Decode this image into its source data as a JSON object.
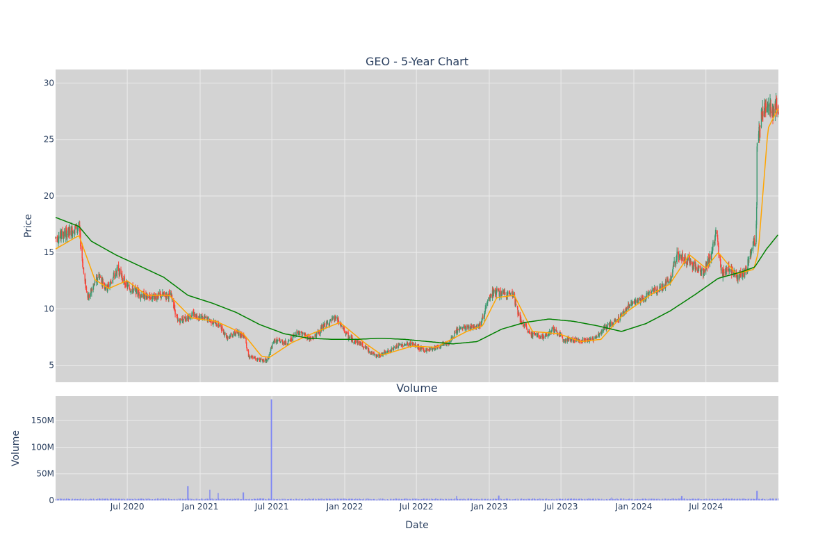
{
  "chart_data": [
    {
      "type": "candlestick",
      "title": "GEO - 5-Year Chart",
      "ylabel": "Price",
      "xlabel": "",
      "ylim": [
        3.5,
        31.2
      ],
      "yticks": [
        5,
        10,
        15,
        20,
        25,
        30
      ],
      "xticks": [
        "Jul 2020",
        "Jan 2021",
        "Jul 2021",
        "Jan 2022",
        "Jul 2022",
        "Jan 2023",
        "Jul 2023",
        "Jan 2024",
        "Jul 2024"
      ],
      "colors": {
        "up": "#3d9970",
        "down": "#ff4136",
        "ma_short": "#ffa500",
        "ma_long": "#008000",
        "plot_bg": "#d3d3d3",
        "grid": "#ebebeb"
      },
      "price_anchors": [
        [
          "2020-01-02",
          16.3
        ],
        [
          "2020-02-05",
          16.8
        ],
        [
          "2020-03-01",
          17.3
        ],
        [
          "2020-03-15",
          12.5
        ],
        [
          "2020-03-25",
          11.0
        ],
        [
          "2020-04-20",
          13.0
        ],
        [
          "2020-05-10",
          11.8
        ],
        [
          "2020-06-08",
          13.5
        ],
        [
          "2020-06-30",
          12.0
        ],
        [
          "2020-08-20",
          11.0
        ],
        [
          "2020-09-30",
          11.2
        ],
        [
          "2020-10-20",
          11.2
        ],
        [
          "2020-11-05",
          8.9
        ],
        [
          "2020-12-15",
          9.5
        ],
        [
          "2021-01-25",
          9.0
        ],
        [
          "2021-02-20",
          8.5
        ],
        [
          "2021-03-10",
          7.5
        ],
        [
          "2021-04-05",
          7.9
        ],
        [
          "2021-04-25",
          7.6
        ],
        [
          "2021-05-02",
          5.8
        ],
        [
          "2021-06-01",
          5.5
        ],
        [
          "2021-06-20",
          5.4
        ],
        [
          "2021-06-29",
          6.5
        ],
        [
          "2021-07-08",
          7.2
        ],
        [
          "2021-08-10",
          7.0
        ],
        [
          "2021-09-05",
          8.0
        ],
        [
          "2021-10-10",
          7.3
        ],
        [
          "2021-11-10",
          8.5
        ],
        [
          "2021-12-10",
          9.2
        ],
        [
          "2022-01-10",
          7.5
        ],
        [
          "2022-02-15",
          6.8
        ],
        [
          "2022-03-20",
          5.8
        ],
        [
          "2022-04-20",
          6.2
        ],
        [
          "2022-05-20",
          6.8
        ],
        [
          "2022-06-20",
          6.9
        ],
        [
          "2022-07-20",
          6.3
        ],
        [
          "2022-08-20",
          6.6
        ],
        [
          "2022-09-20",
          7.0
        ],
        [
          "2022-10-15",
          8.2
        ],
        [
          "2022-11-15",
          8.4
        ],
        [
          "2022-12-10",
          8.6
        ],
        [
          "2022-12-25",
          10.3
        ],
        [
          "2023-01-10",
          11.5
        ],
        [
          "2023-02-10",
          11.3
        ],
        [
          "2023-03-01",
          11.4
        ],
        [
          "2023-03-20",
          9.0
        ],
        [
          "2023-04-15",
          7.8
        ],
        [
          "2023-05-20",
          7.5
        ],
        [
          "2023-06-10",
          8.2
        ],
        [
          "2023-07-10",
          7.3
        ],
        [
          "2023-08-20",
          7.2
        ],
        [
          "2023-09-20",
          7.3
        ],
        [
          "2023-10-20",
          8.3
        ],
        [
          "2023-11-20",
          9.0
        ],
        [
          "2023-12-20",
          10.3
        ],
        [
          "2024-01-20",
          10.8
        ],
        [
          "2024-02-20",
          11.6
        ],
        [
          "2024-03-15",
          12.0
        ],
        [
          "2024-04-01",
          12.6
        ],
        [
          "2024-04-20",
          14.8
        ],
        [
          "2024-05-20",
          14.2
        ],
        [
          "2024-06-10",
          13.6
        ],
        [
          "2024-06-25",
          13.2
        ],
        [
          "2024-07-10",
          14.5
        ],
        [
          "2024-07-28",
          16.6
        ],
        [
          "2024-08-10",
          13.0
        ],
        [
          "2024-08-25",
          13.7
        ],
        [
          "2024-09-20",
          12.8
        ],
        [
          "2024-10-10",
          13.3
        ],
        [
          "2024-10-25",
          15.5
        ],
        [
          "2024-11-04",
          16.0
        ],
        [
          "2024-11-06",
          19.5
        ],
        [
          "2024-11-07",
          24.5
        ],
        [
          "2024-11-20",
          27.5
        ],
        [
          "2024-12-05",
          28.0
        ],
        [
          "2024-12-20",
          27.5
        ],
        [
          "2024-12-31",
          28.0
        ]
      ],
      "ma_short_anchors": [
        [
          "2020-01-02",
          15.3
        ],
        [
          "2020-03-01",
          16.5
        ],
        [
          "2020-04-10",
          12.6
        ],
        [
          "2020-05-15",
          11.8
        ],
        [
          "2020-06-30",
          12.5
        ],
        [
          "2020-08-20",
          11.2
        ],
        [
          "2020-10-15",
          11.2
        ],
        [
          "2020-12-10",
          9.2
        ],
        [
          "2021-02-10",
          8.9
        ],
        [
          "2021-04-20",
          7.8
        ],
        [
          "2021-06-05",
          5.8
        ],
        [
          "2021-06-25",
          5.7
        ],
        [
          "2021-08-20",
          7.0
        ],
        [
          "2021-10-10",
          7.8
        ],
        [
          "2021-12-20",
          8.8
        ],
        [
          "2022-02-20",
          7.0
        ],
        [
          "2022-04-05",
          5.9
        ],
        [
          "2022-06-20",
          6.7
        ],
        [
          "2022-08-20",
          6.6
        ],
        [
          "2022-11-05",
          8.0
        ],
        [
          "2022-12-15",
          8.5
        ],
        [
          "2023-01-20",
          11.0
        ],
        [
          "2023-03-05",
          11.2
        ],
        [
          "2023-04-20",
          8.0
        ],
        [
          "2023-06-25",
          7.8
        ],
        [
          "2023-08-20",
          7.1
        ],
        [
          "2023-10-10",
          7.3
        ],
        [
          "2023-12-05",
          9.5
        ],
        [
          "2024-02-10",
          11.2
        ],
        [
          "2024-04-01",
          12.2
        ],
        [
          "2024-05-20",
          14.8
        ],
        [
          "2024-07-01",
          13.6
        ],
        [
          "2024-08-01",
          15.0
        ],
        [
          "2024-09-15",
          13.1
        ],
        [
          "2024-10-30",
          13.5
        ],
        [
          "2024-11-10",
          15.0
        ],
        [
          "2024-12-05",
          26.0
        ],
        [
          "2024-12-31",
          27.8
        ]
      ],
      "ma_long_anchors": [
        [
          "2020-01-02",
          18.1
        ],
        [
          "2020-03-01",
          17.3
        ],
        [
          "2020-04-01",
          16.0
        ],
        [
          "2020-06-01",
          14.8
        ],
        [
          "2020-08-01",
          13.8
        ],
        [
          "2020-10-01",
          12.8
        ],
        [
          "2020-12-01",
          11.2
        ],
        [
          "2021-02-01",
          10.5
        ],
        [
          "2021-04-01",
          9.7
        ],
        [
          "2021-06-01",
          8.6
        ],
        [
          "2021-08-01",
          7.8
        ],
        [
          "2021-10-01",
          7.4
        ],
        [
          "2021-12-01",
          7.3
        ],
        [
          "2022-02-01",
          7.3
        ],
        [
          "2022-04-01",
          7.4
        ],
        [
          "2022-06-01",
          7.3
        ],
        [
          "2022-08-01",
          7.1
        ],
        [
          "2022-10-01",
          6.9
        ],
        [
          "2022-12-01",
          7.1
        ],
        [
          "2023-02-01",
          8.2
        ],
        [
          "2023-04-01",
          8.8
        ],
        [
          "2023-06-01",
          9.1
        ],
        [
          "2023-08-01",
          8.9
        ],
        [
          "2023-10-01",
          8.5
        ],
        [
          "2023-12-01",
          8.0
        ],
        [
          "2024-02-01",
          8.7
        ],
        [
          "2024-04-01",
          9.8
        ],
        [
          "2024-06-01",
          11.2
        ],
        [
          "2024-08-01",
          12.7
        ],
        [
          "2024-10-01",
          13.3
        ],
        [
          "2024-11-01",
          13.7
        ],
        [
          "2024-12-01",
          15.3
        ],
        [
          "2024-12-31",
          16.6
        ]
      ]
    },
    {
      "type": "bar",
      "title": "Volume",
      "ylabel": "Volume",
      "xlabel": "Date",
      "ylim": [
        0,
        196
      ],
      "yticks": [
        0,
        50,
        100,
        150
      ],
      "ytick_labels": [
        "0",
        "50M",
        "100M",
        "150M"
      ],
      "xticks": [
        "Jul 2020",
        "Jan 2021",
        "Jul 2021",
        "Jan 2022",
        "Jul 2022",
        "Jan 2023",
        "Jul 2023",
        "Jan 2024",
        "Jul 2024"
      ],
      "value_unit": "M",
      "baseline_volume": 2.5,
      "volume_spikes": [
        [
          "2020-12-01",
          27
        ],
        [
          "2021-01-25",
          20
        ],
        [
          "2021-02-15",
          14
        ],
        [
          "2021-04-20",
          15
        ],
        [
          "2021-06-30",
          190
        ],
        [
          "2022-10-10",
          8
        ],
        [
          "2023-01-25",
          9
        ],
        [
          "2023-11-05",
          6
        ],
        [
          "2024-05-01",
          8
        ],
        [
          "2024-11-07",
          18
        ]
      ],
      "colors": {
        "bar": "#636efa",
        "plot_bg": "#d3d3d3",
        "grid": "#ebebeb"
      }
    }
  ]
}
